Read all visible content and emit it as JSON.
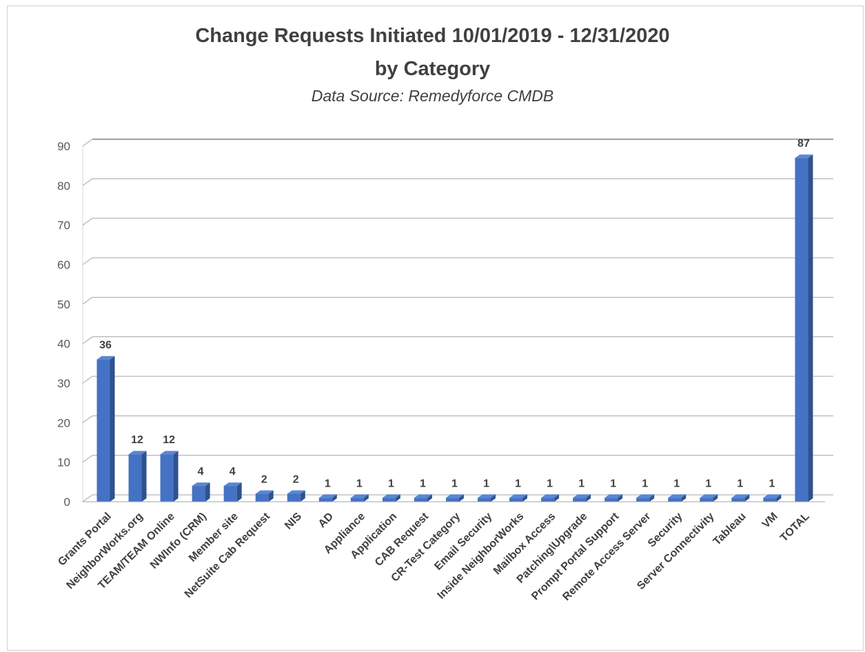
{
  "chart_data": {
    "type": "bar",
    "title_line1": "Change Requests Initiated 10/01/2019 - 12/31/2020",
    "title_line2": "by Category",
    "subtitle": "Data Source: Remedyforce CMDB",
    "categories": [
      "Grants Portal",
      "NeighborWorks.org",
      "TEAM/TEAM Online",
      "NWInfo (CRM)",
      "Member site",
      "NetSuite Cab Request",
      "NIS",
      "AD",
      "Appliance",
      "Application",
      "CAB Request",
      "CR-Test Category",
      "Email Security",
      "Inside NeighborWorks",
      "Mailbox Access",
      "Patching\\Upgrade",
      "Prompt Portal Support",
      "Remote Access Server",
      "Security",
      "Server Connectivity",
      "Tableau",
      "VM",
      "TOTAL"
    ],
    "values": [
      36,
      12,
      12,
      4,
      4,
      2,
      2,
      1,
      1,
      1,
      1,
      1,
      1,
      1,
      1,
      1,
      1,
      1,
      1,
      1,
      1,
      1,
      87
    ],
    "ylim": [
      0,
      90
    ],
    "yticks": [
      0,
      10,
      20,
      30,
      40,
      50,
      60,
      70,
      80,
      90
    ],
    "grid": true,
    "legend": "none",
    "bar_color": "#4472c4",
    "xlabel": "",
    "ylabel": ""
  }
}
